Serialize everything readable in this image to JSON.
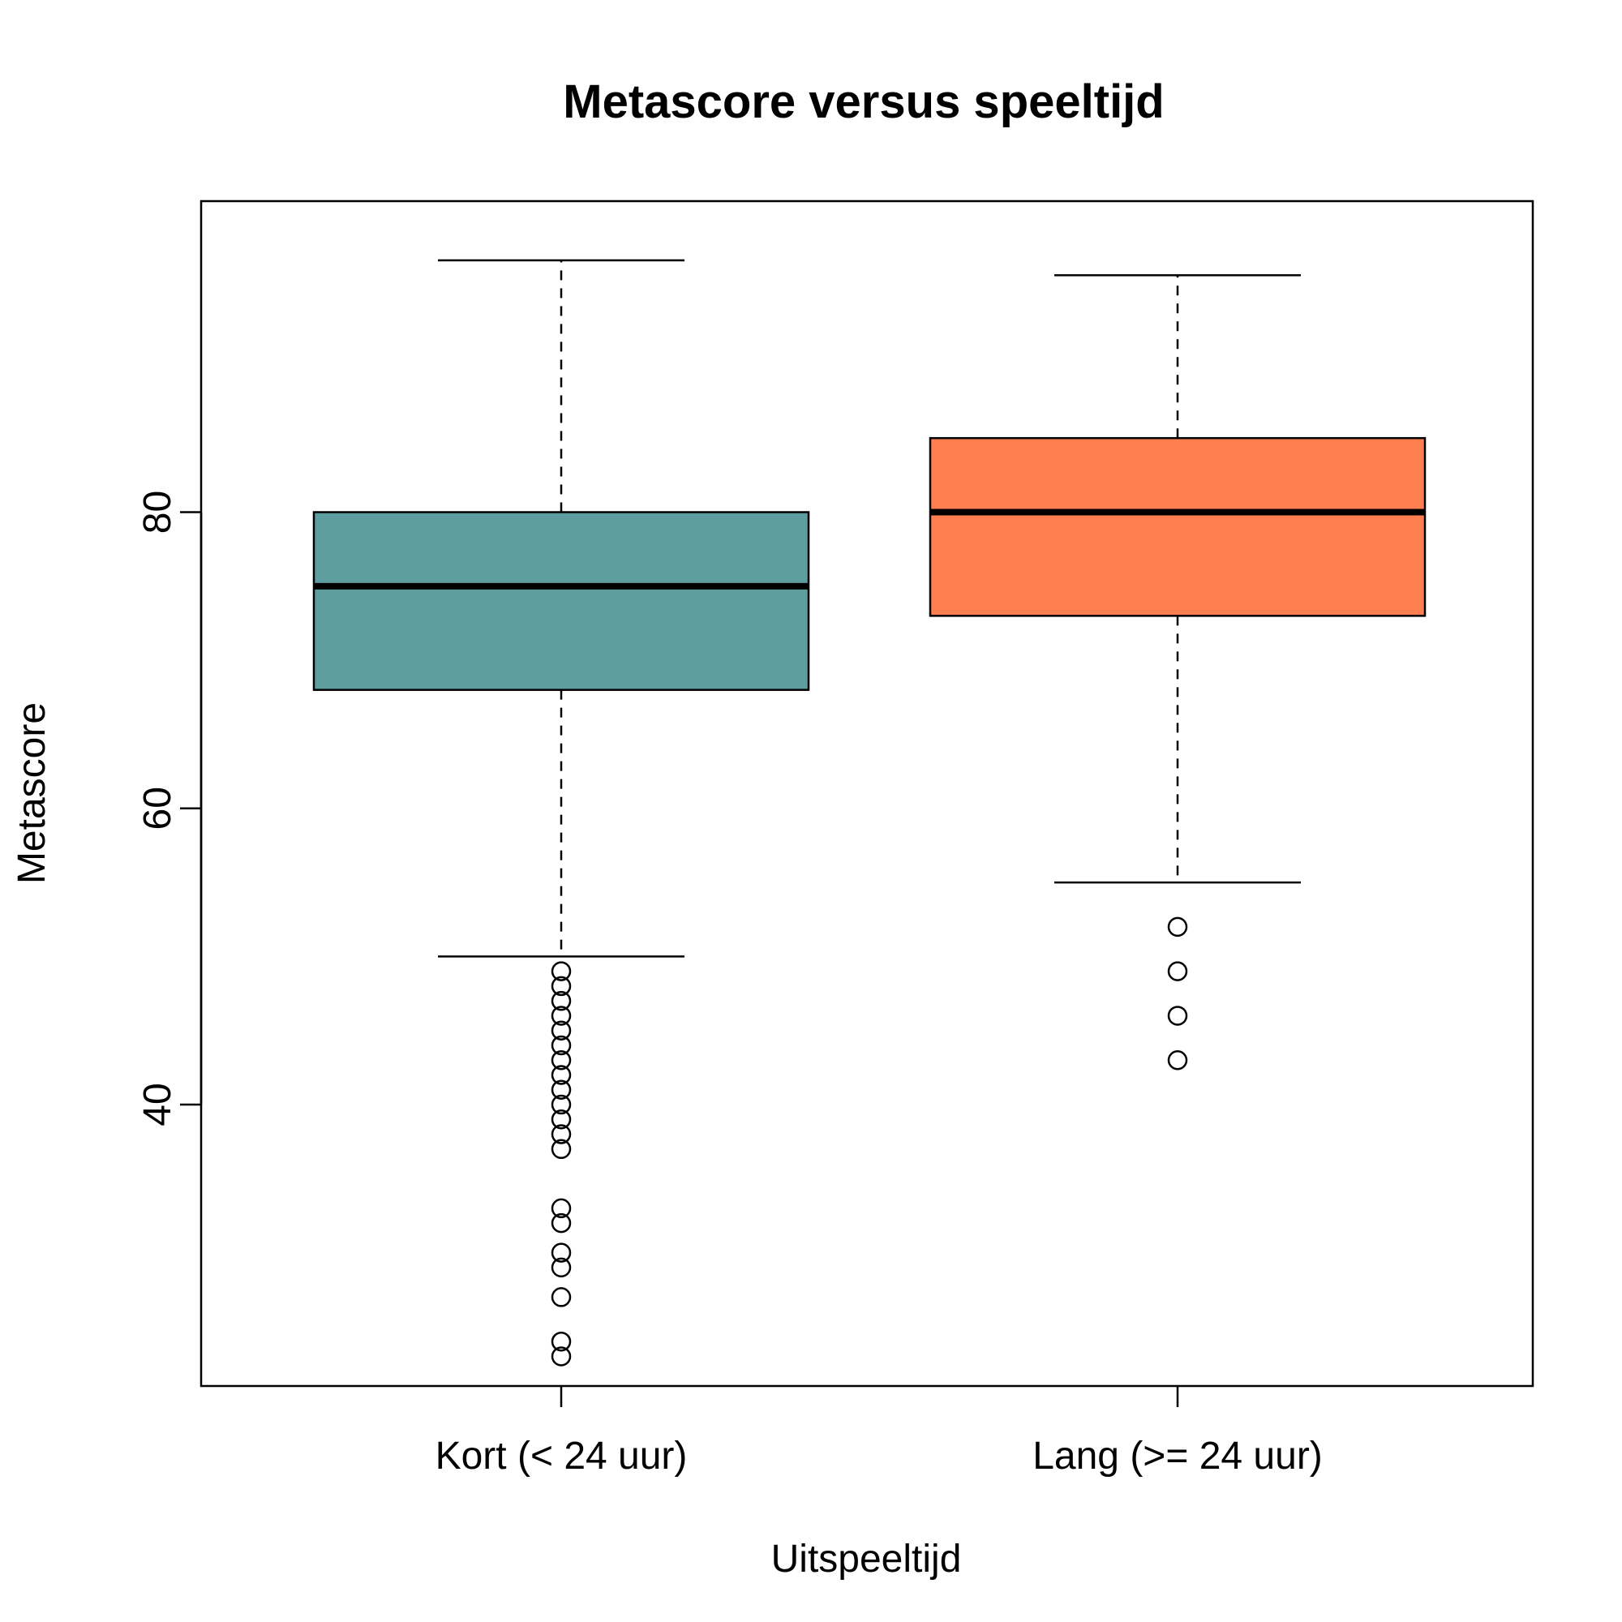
{
  "chart_data": {
    "type": "boxplot",
    "title": "Metascore versus speeltijd",
    "xlabel": "Uitspeeltijd",
    "ylabel": "Metascore",
    "ylim": [
      21,
      101
    ],
    "y_ticks": [
      40,
      60,
      80
    ],
    "y_tick_labels": [
      "40",
      "60",
      "80"
    ],
    "grid": false,
    "legend": "none",
    "categories": [
      "Kort (< 24 uur)",
      "Lang (>= 24 uur)"
    ],
    "boxes": [
      {
        "category": "Kort (< 24 uur)",
        "color": "#5F9EA0",
        "whisker_low": 50,
        "q1": 68,
        "median": 75,
        "q3": 80,
        "whisker_high": 97,
        "outliers": [
          49,
          48,
          47,
          46,
          45,
          44,
          43,
          42,
          41,
          40,
          39,
          38,
          37,
          33,
          32,
          30,
          29,
          27,
          24,
          23
        ]
      },
      {
        "category": "Lang (>= 24 uur)",
        "color": "#FF7F50",
        "whisker_low": 55,
        "q1": 73,
        "median": 80,
        "q3": 85,
        "whisker_high": 96,
        "outliers": [
          52,
          49,
          46,
          43
        ]
      }
    ]
  }
}
